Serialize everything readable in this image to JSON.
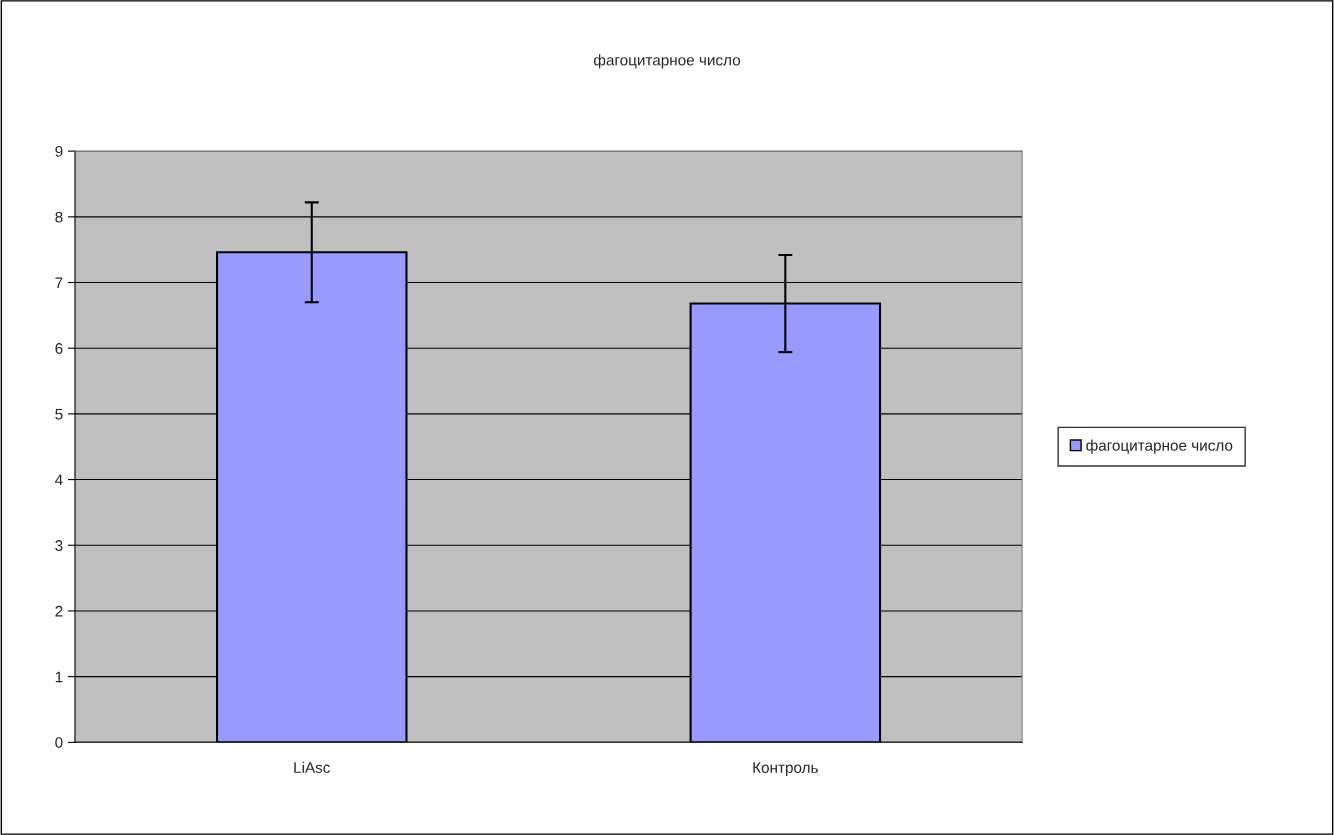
{
  "chart_data": {
    "type": "bar",
    "title": "фагоцитарное число",
    "categories": [
      "LiAsc",
      "Контроль"
    ],
    "series": [
      {
        "name": "фагоцитарное число",
        "color": "#9999ff",
        "values": [
          7.46,
          6.68
        ],
        "errors": [
          0.76,
          0.74
        ]
      }
    ],
    "ylim": [
      0,
      9
    ],
    "yticks": [
      0,
      1,
      2,
      3,
      4,
      5,
      6,
      7,
      8,
      9
    ],
    "grid": "y",
    "legend": "right"
  }
}
